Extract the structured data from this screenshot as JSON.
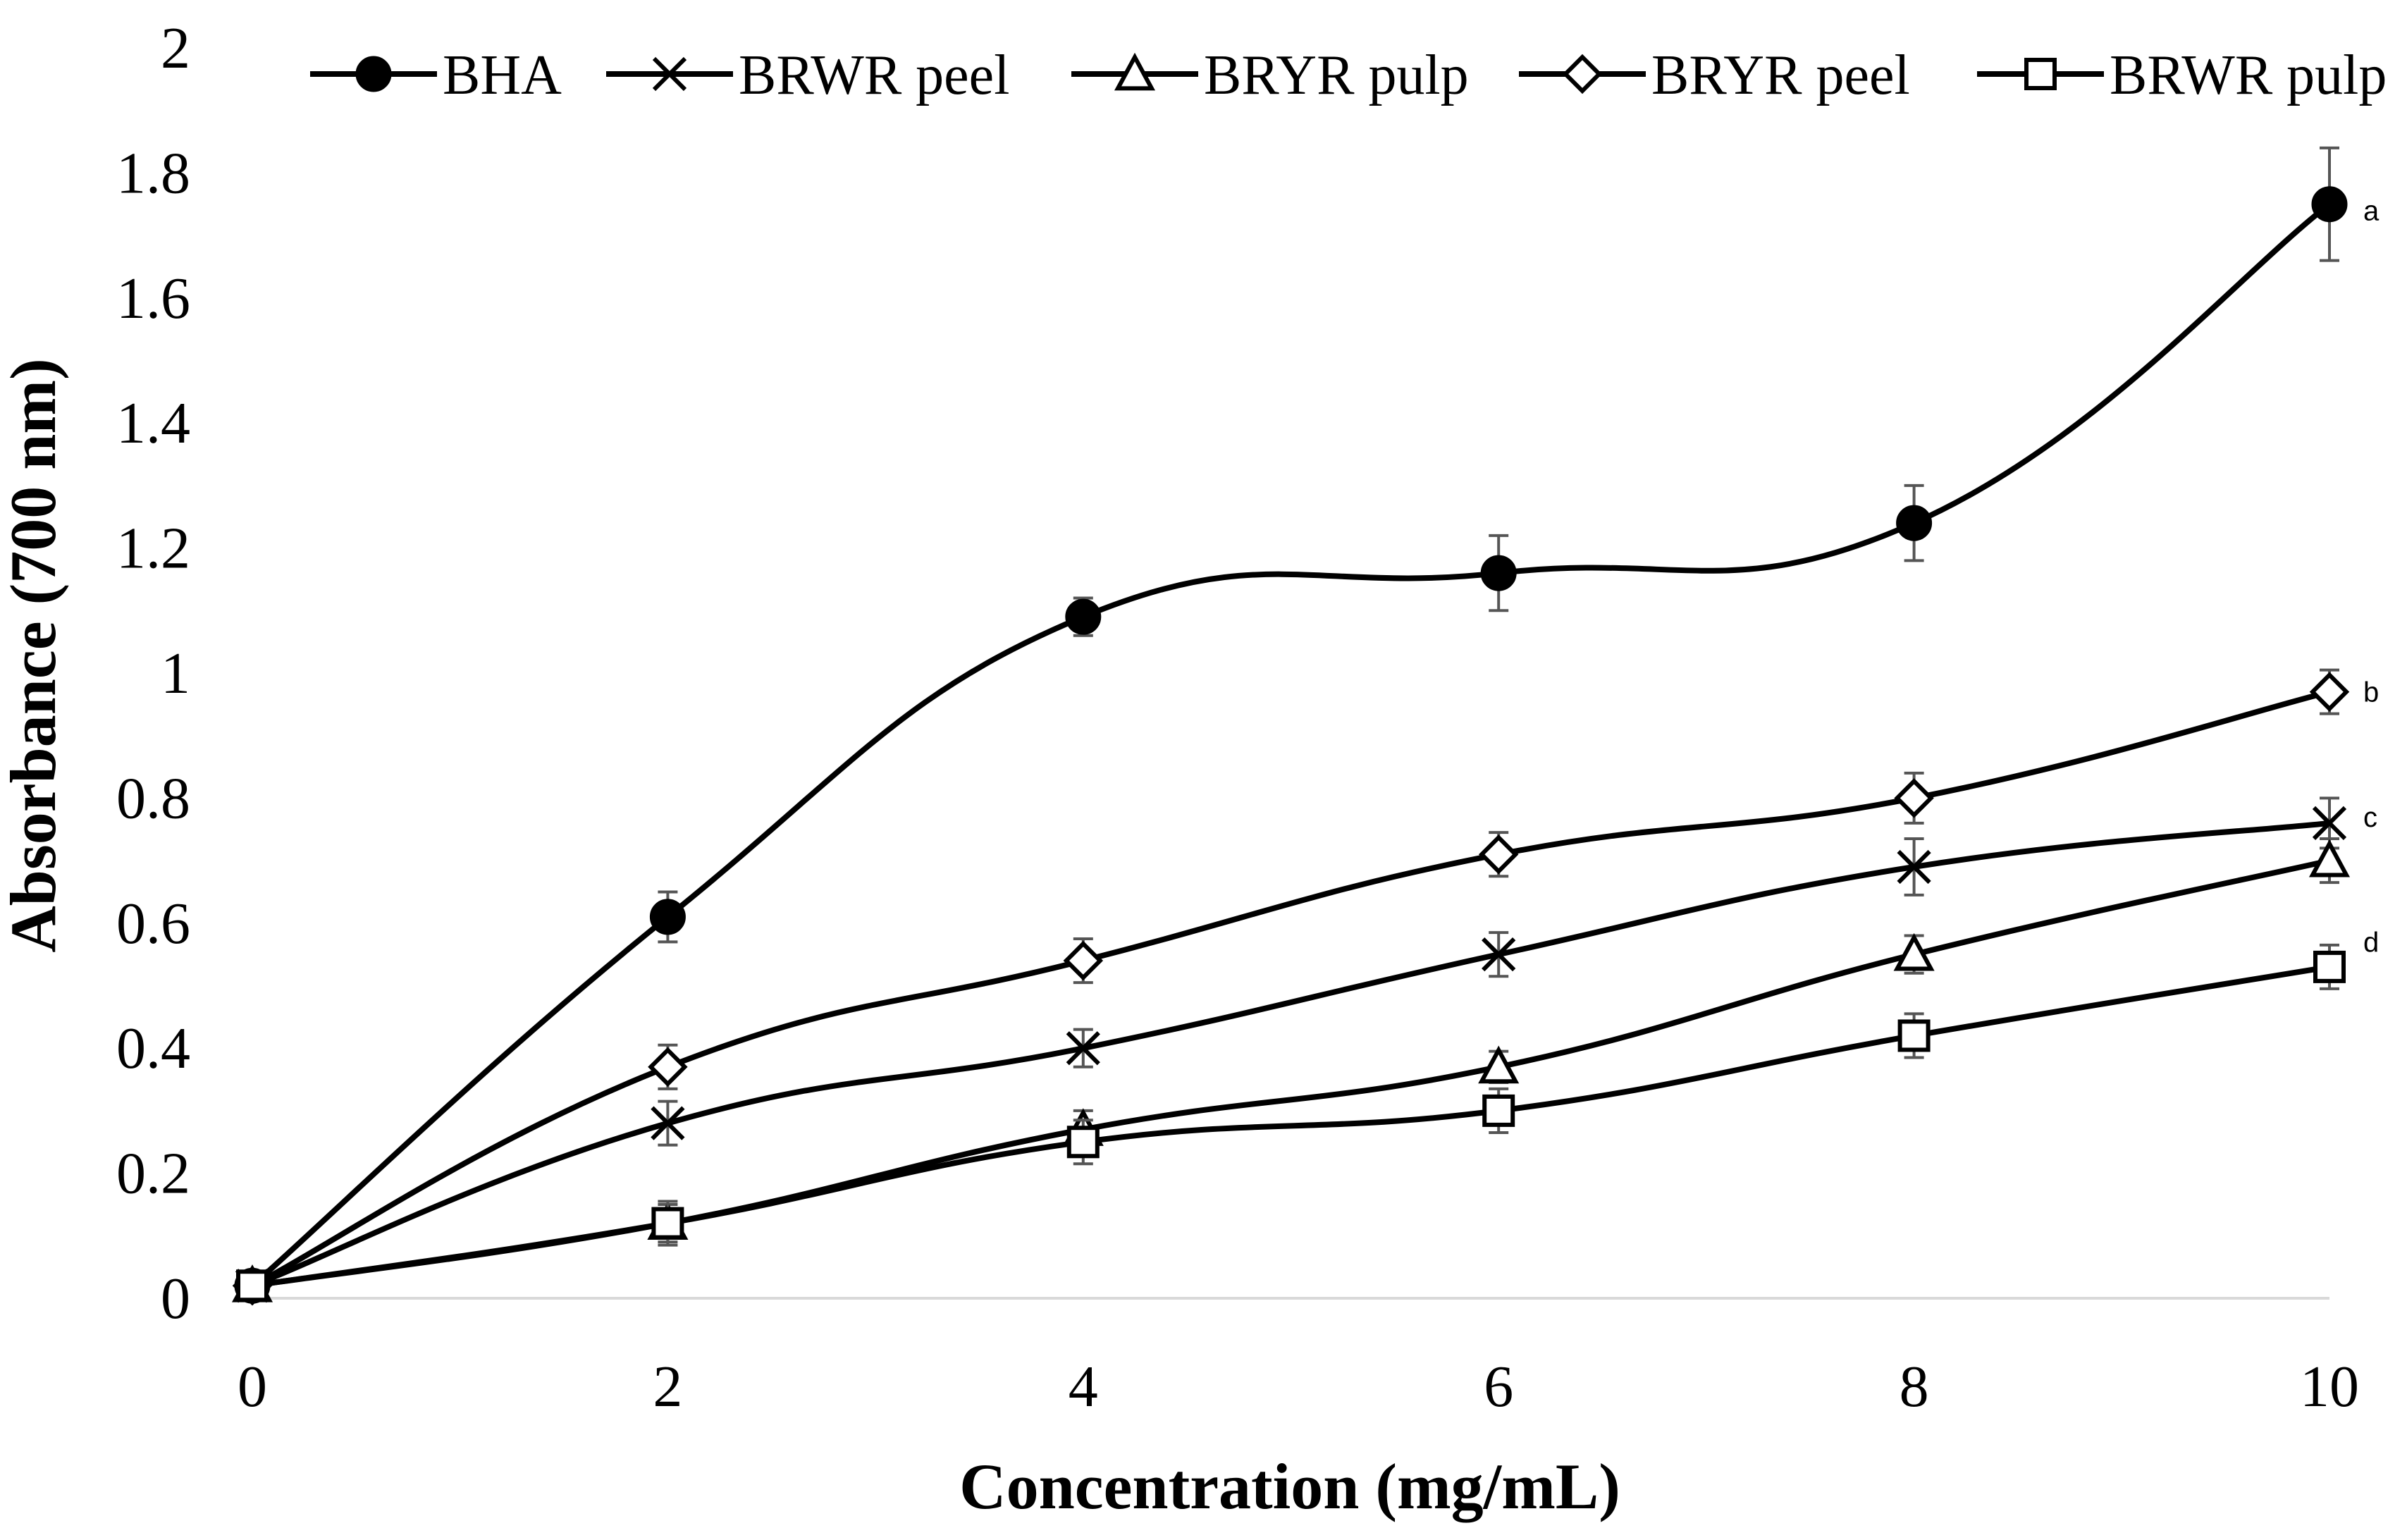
{
  "chart_data": {
    "type": "line",
    "title": "",
    "xlabel": "Concentration (mg/mL)",
    "ylabel": "Absorbance (700 nm)",
    "xlim": [
      0,
      10
    ],
    "ylim": [
      0,
      2
    ],
    "xticks": [
      0,
      2,
      4,
      6,
      8,
      10
    ],
    "yticks": [
      0,
      0.2,
      0.4,
      0.6,
      0.8,
      1,
      1.2,
      1.4,
      1.6,
      1.8,
      2
    ],
    "x": [
      0,
      2,
      4,
      6,
      8,
      10
    ],
    "grid": false,
    "legend_position": "top",
    "line_color": "#000000",
    "errorbar_color": "#555555",
    "series": [
      {
        "name": "BHA",
        "marker": "filled-circle",
        "values": [
          0.02,
          0.61,
          1.09,
          1.16,
          1.24,
          1.75
        ],
        "errors": [
          0,
          0.04,
          0.03,
          0.06,
          0.06,
          0.09
        ]
      },
      {
        "name": "BRWR peel",
        "marker": "x",
        "values": [
          0.02,
          0.28,
          0.4,
          0.55,
          0.69,
          0.76
        ],
        "errors": [
          0,
          0.035,
          0.03,
          0.035,
          0.045,
          0.04
        ]
      },
      {
        "name": "BRYR pulp",
        "marker": "open-triangle",
        "values": [
          0.02,
          0.12,
          0.27,
          0.37,
          0.55,
          0.7
        ],
        "errors": [
          0,
          0.03,
          0.03,
          0.025,
          0.03,
          0.035
        ]
      },
      {
        "name": "BRYR peel",
        "marker": "open-diamond",
        "values": [
          0.02,
          0.37,
          0.54,
          0.71,
          0.8,
          0.97
        ],
        "errors": [
          0,
          0.035,
          0.035,
          0.035,
          0.04,
          0.035
        ]
      },
      {
        "name": "BRWR pulp",
        "marker": "open-square",
        "values": [
          0.02,
          0.12,
          0.25,
          0.3,
          0.42,
          0.53
        ],
        "errors": [
          0,
          0.035,
          0.035,
          0.035,
          0.035,
          0.035
        ]
      }
    ],
    "annotations": [
      {
        "text": "a",
        "x": 10,
        "y": 1.74
      },
      {
        "text": "b",
        "x": 10,
        "y": 0.97
      },
      {
        "text": "c",
        "x": 10,
        "y": 0.77
      },
      {
        "text": "d",
        "x": 10,
        "y": 0.57
      }
    ]
  }
}
